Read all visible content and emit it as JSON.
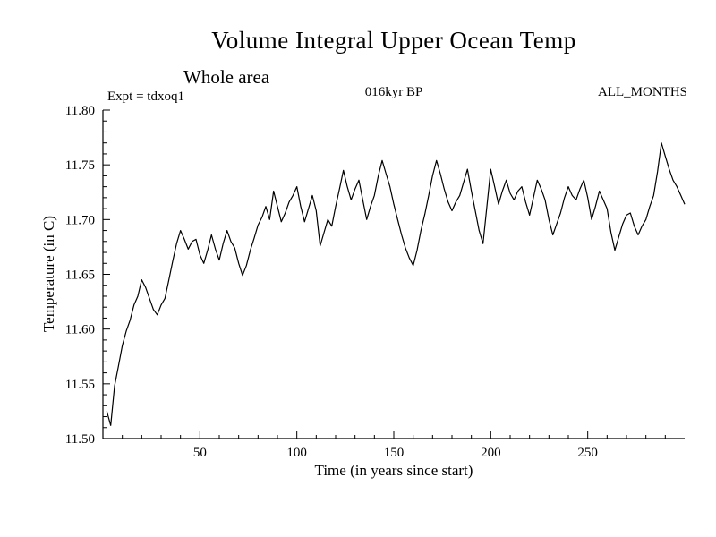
{
  "header": {
    "title": "Volume Integral Upper Ocean Temp",
    "subtitle": "Whole area",
    "expt_label": "Expt = tdxoq1",
    "kyr_label": "016kyr BP",
    "months_label": "ALL_MONTHS"
  },
  "chart_data": {
    "type": "line",
    "title": "Volume Integral Upper Ocean Temp",
    "subtitle": "Whole area",
    "annotations": [
      "Expt = tdxoq1",
      "016kyr BP",
      "ALL_MONTHS"
    ],
    "xlabel": "Time (in years since start)",
    "ylabel": "Temperature (in C)",
    "xlim": [
      0,
      300
    ],
    "ylim": [
      11.5,
      11.8
    ],
    "xticks": [
      50,
      100,
      150,
      200,
      250
    ],
    "yticks": [
      11.5,
      11.55,
      11.6,
      11.65,
      11.7,
      11.75,
      11.8
    ],
    "x_minor_step": 10,
    "y_minor_step": 0.01,
    "grid": false,
    "legend": "none",
    "line_color": "#000000",
    "background": "#ffffff",
    "x": [
      2,
      4,
      6,
      8,
      10,
      12,
      14,
      16,
      18,
      20,
      22,
      24,
      26,
      28,
      30,
      32,
      34,
      36,
      38,
      40,
      42,
      44,
      46,
      48,
      50,
      52,
      54,
      56,
      58,
      60,
      62,
      64,
      66,
      68,
      70,
      72,
      74,
      76,
      78,
      80,
      82,
      84,
      86,
      88,
      90,
      92,
      94,
      96,
      98,
      100,
      102,
      104,
      106,
      108,
      110,
      112,
      114,
      116,
      118,
      120,
      122,
      124,
      126,
      128,
      130,
      132,
      134,
      136,
      138,
      140,
      142,
      144,
      146,
      148,
      150,
      152,
      154,
      156,
      158,
      160,
      162,
      164,
      166,
      168,
      170,
      172,
      174,
      176,
      178,
      180,
      182,
      184,
      186,
      188,
      190,
      192,
      194,
      196,
      198,
      200,
      202,
      204,
      206,
      208,
      210,
      212,
      214,
      216,
      218,
      220,
      222,
      224,
      226,
      228,
      230,
      232,
      234,
      236,
      238,
      240,
      242,
      244,
      246,
      248,
      250,
      252,
      254,
      256,
      258,
      260,
      262,
      264,
      266,
      268,
      270,
      272,
      274,
      276,
      278,
      280,
      282,
      284,
      286,
      288,
      290,
      292,
      294,
      296,
      298,
      300
    ],
    "y": [
      11.525,
      11.512,
      11.548,
      11.566,
      11.585,
      11.598,
      11.608,
      11.622,
      11.63,
      11.645,
      11.638,
      11.628,
      11.618,
      11.613,
      11.622,
      11.628,
      11.645,
      11.662,
      11.678,
      11.69,
      11.682,
      11.673,
      11.68,
      11.682,
      11.668,
      11.66,
      11.672,
      11.686,
      11.673,
      11.663,
      11.678,
      11.69,
      11.68,
      11.674,
      11.66,
      11.649,
      11.658,
      11.672,
      11.683,
      11.695,
      11.702,
      11.712,
      11.7,
      11.726,
      11.712,
      11.698,
      11.706,
      11.716,
      11.722,
      11.73,
      11.712,
      11.698,
      11.71,
      11.722,
      11.708,
      11.676,
      11.688,
      11.7,
      11.694,
      11.712,
      11.728,
      11.745,
      11.73,
      11.718,
      11.728,
      11.736,
      11.718,
      11.7,
      11.712,
      11.722,
      11.74,
      11.754,
      11.742,
      11.73,
      11.714,
      11.7,
      11.686,
      11.674,
      11.665,
      11.658,
      11.672,
      11.69,
      11.705,
      11.722,
      11.74,
      11.754,
      11.742,
      11.728,
      11.716,
      11.708,
      11.716,
      11.722,
      11.734,
      11.746,
      11.726,
      11.708,
      11.69,
      11.678,
      11.712,
      11.746,
      11.73,
      11.714,
      11.726,
      11.736,
      11.724,
      11.718,
      11.726,
      11.73,
      11.716,
      11.704,
      11.72,
      11.736,
      11.728,
      11.718,
      11.7,
      11.686,
      11.696,
      11.706,
      11.72,
      11.73,
      11.722,
      11.718,
      11.728,
      11.736,
      11.72,
      11.7,
      11.712,
      11.726,
      11.718,
      11.71,
      11.688,
      11.672,
      11.684,
      11.696,
      11.704,
      11.706,
      11.694,
      11.686,
      11.694,
      11.7,
      11.712,
      11.722,
      11.744,
      11.77,
      11.758,
      11.746,
      11.736,
      11.73,
      11.722,
      11.714
    ]
  }
}
